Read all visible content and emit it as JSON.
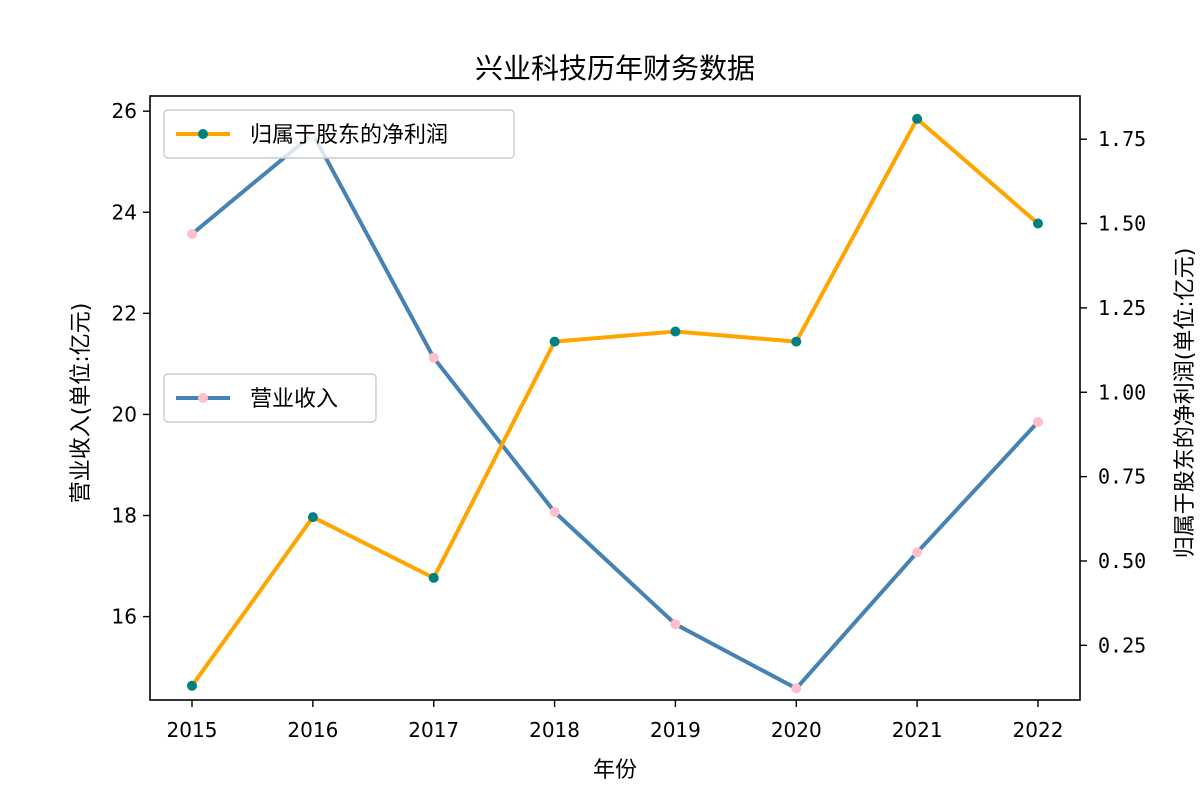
{
  "chart_data": {
    "type": "line",
    "title": "兴业科技历年财务数据",
    "xlabel": "年份",
    "ylabel_left": "营业收入(单位:亿元)",
    "ylabel_right": "归属于股东的净利润(单位:亿元)",
    "categories": [
      "2015",
      "2016",
      "2017",
      "2018",
      "2019",
      "2020",
      "2021",
      "2022"
    ],
    "left_ylim": [
      14.35,
      26.3
    ],
    "right_ylim": [
      0.088,
      1.878
    ],
    "left_ticks": [
      "16",
      "18",
      "20",
      "22",
      "24",
      "26"
    ],
    "right_ticks": [
      "0.25",
      "0.50",
      "0.75",
      "1.00",
      "1.25",
      "1.50",
      "1.75"
    ],
    "series": [
      {
        "name": "营业收入",
        "axis": "left",
        "line_color": "#4682b4",
        "marker_color": "#ffc0cb",
        "values": [
          23.57,
          25.55,
          21.12,
          18.07,
          15.85,
          14.58,
          17.27,
          19.85
        ]
      },
      {
        "name": "归属于股东的净利润",
        "axis": "right",
        "line_color": "#ffa500",
        "marker_color": "#008080",
        "values": [
          0.13,
          0.63,
          0.45,
          1.15,
          1.18,
          1.15,
          1.81,
          1.5
        ]
      }
    ],
    "legends": [
      {
        "series": "归属于股东的净利润",
        "position": "upper-left"
      },
      {
        "series": "营业收入",
        "position": "center-left"
      }
    ]
  }
}
